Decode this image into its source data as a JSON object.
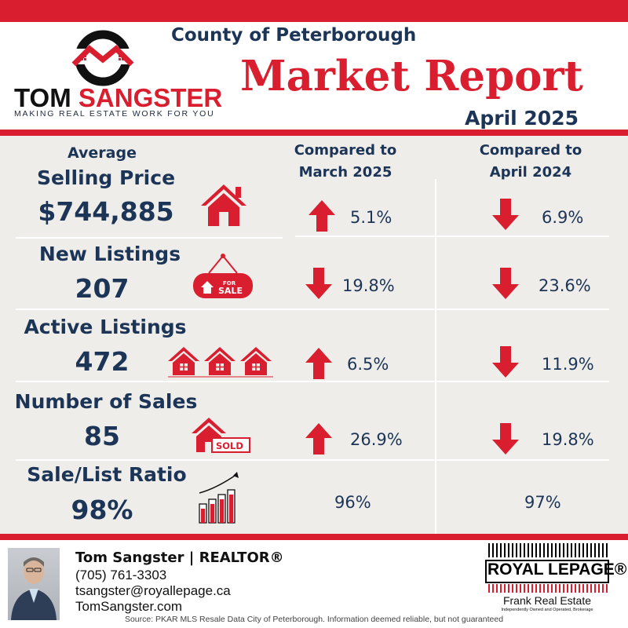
{
  "header": {
    "brand_name_first": "TOM",
    "brand_name_last": "SANGSTER",
    "tagline": "MAKING REAL ESTATE WORK FOR YOU",
    "county": "County of Peterborough",
    "title": "Market Report",
    "month": "April 2025"
  },
  "columns": {
    "compare1_line1": "Compared to",
    "compare1_line2": "March 2025",
    "compare2_line1": "Compared to",
    "compare2_line2": "April 2024"
  },
  "metrics": [
    {
      "title_line1": "Average",
      "title_line2": "Selling Price",
      "value": "$744,885",
      "icon": "house-icon",
      "c1_dir": "up",
      "c1": "5.1%",
      "c2_dir": "down",
      "c2": "6.9%"
    },
    {
      "title": "New Listings",
      "value": "207",
      "icon": "for-sale-sign-icon",
      "sign_for": "FOR",
      "sign_sale": "SALE",
      "c1_dir": "down",
      "c1": "19.8%",
      "c2_dir": "down",
      "c2": "23.6%"
    },
    {
      "title": "Active Listings",
      "value": "472",
      "icon": "three-houses-icon",
      "c1_dir": "up",
      "c1": "6.5%",
      "c2_dir": "down",
      "c2": "11.9%"
    },
    {
      "title": "Number of Sales",
      "value": "85",
      "icon": "sold-house-icon",
      "sold_label": "SOLD",
      "c1_dir": "up",
      "c1": "26.9%",
      "c2_dir": "down",
      "c2": "19.8%"
    },
    {
      "title": "Sale/List Ratio",
      "value": "98%",
      "icon": "rising-bar-chart-icon",
      "c1": "96%",
      "c2": "97%"
    }
  ],
  "agent": {
    "name": "Tom Sangster | REALTOR®",
    "phone": "(705) 761-3303",
    "email": "tsangster@royallepage.ca",
    "website": "TomSangster.com"
  },
  "brokerage": {
    "logo": "ROYAL LEPAGE®",
    "name": "Frank Real Estate",
    "subtext": "Independently Owned and Operated, Brokerage"
  },
  "source_note": "Source: PKAR MLS Resale Data City of Peterborough. Information deemed reliable, but not guaranteed",
  "colors": {
    "accent": "#d81e2f",
    "navy": "#1c3557",
    "panel": "#efedea"
  }
}
